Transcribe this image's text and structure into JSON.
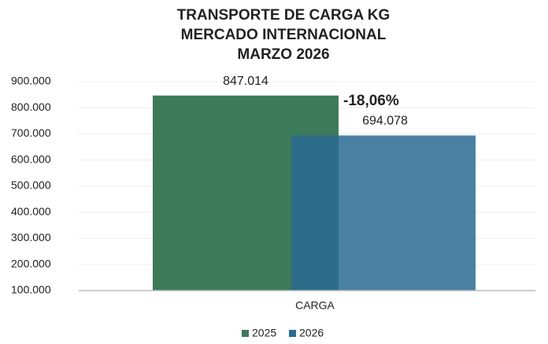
{
  "chart_data": {
    "type": "bar",
    "title": [
      "TRANSPORTE DE CARGA KG",
      "MERCADO INTERNACIONAL",
      "MARZO 2026"
    ],
    "categories": [
      "CARGA"
    ],
    "series": [
      {
        "name": "2025",
        "color": "#3d7a5a",
        "values": [
          847014
        ],
        "value_labels": [
          "847.014"
        ]
      },
      {
        "name": "2026",
        "color": "#2a6a92",
        "values": [
          694078
        ],
        "value_labels": [
          "694.078"
        ]
      }
    ],
    "annotation": "-18,06%",
    "ylim": [
      100000,
      900000
    ],
    "yticks": [
      {
        "value": 100000,
        "label": "100.000"
      },
      {
        "value": 200000,
        "label": "200.000"
      },
      {
        "value": 300000,
        "label": "300.000"
      },
      {
        "value": 400000,
        "label": "400.000"
      },
      {
        "value": 500000,
        "label": "500.000"
      },
      {
        "value": 600000,
        "label": "600.000"
      },
      {
        "value": 700000,
        "label": "700.000"
      },
      {
        "value": 800000,
        "label": "800.000"
      },
      {
        "value": 900000,
        "label": "900.000"
      }
    ],
    "grid": true,
    "legend": "bottom"
  }
}
